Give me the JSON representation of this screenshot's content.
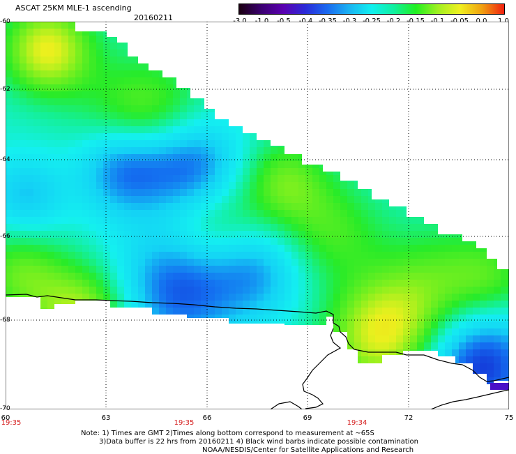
{
  "header": {
    "title": "ASCAT 25KM MLE-1 ascending",
    "date": "20160211"
  },
  "colorbar": {
    "ticks": [
      "-3.0",
      "-1.0",
      "-0.5",
      "-0.4",
      "-0.35",
      "-0.3",
      "-0.25",
      "-0.2",
      "-0.15",
      "-0.1",
      "-0.05",
      "0.0",
      "1.0"
    ],
    "colors": [
      "#1a0010",
      "#3a0070",
      "#5a00b0",
      "#2a2ad8",
      "#1a6af0",
      "#1ab4f2",
      "#10f0f0",
      "#10f0a0",
      "#20f020",
      "#a0f020",
      "#f0f020",
      "#f0a010",
      "#f02010"
    ]
  },
  "map": {
    "lat_labels": [
      "-60",
      "-62",
      "-64",
      "-66",
      "-68",
      "-70"
    ],
    "lon_labels": [
      "60",
      "63",
      "66",
      "69",
      "72",
      "75"
    ],
    "pass_times": [
      "19:35",
      "19:35",
      "19:34"
    ],
    "land_color": "#ffffff",
    "coast_color": "#000000"
  },
  "footer": {
    "line1": "Note: 1) Times are GMT 2)Times along bottom correspond to measurement at ~65S",
    "line2": "3)Data buffer is 22 hrs from 20160211 4) Black wind barbs indicate possible contamination",
    "line3": "NOAA/NESDIS/Center for Satellite Applications and Research"
  }
}
